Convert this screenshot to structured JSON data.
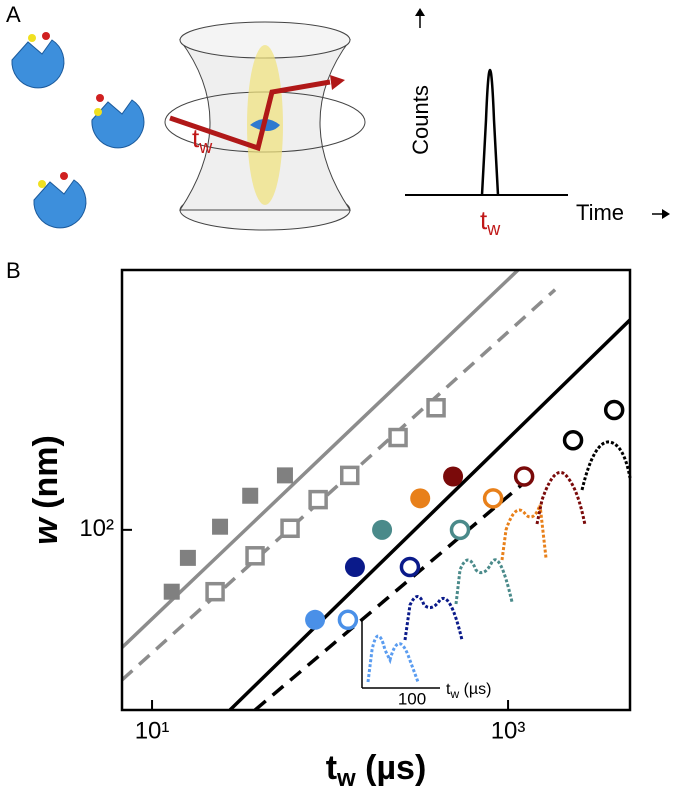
{
  "panel_a": {
    "label": "A",
    "counts": "Counts",
    "time": "Time",
    "trap_tw": {
      "main": "t",
      "sub": "w"
    },
    "plot_tw": {
      "main": "t",
      "sub": "w"
    }
  },
  "chart_data": {
    "type": "scatter",
    "panel_label": "B",
    "x_label": {
      "main": "t",
      "sub": "w",
      "rest": " (µs)"
    },
    "y_label": {
      "main": "w",
      "rest": " (nm)"
    },
    "log_x": true,
    "log_y": true,
    "xlim": [
      6.78,
      4842
    ],
    "ylim": [
      32.1,
      515
    ],
    "xticks": [
      {
        "value": 10,
        "label": "10¹"
      },
      {
        "value": 1000,
        "label": "10³"
      }
    ],
    "yticks": [
      {
        "value": 100,
        "label": "10²"
      }
    ],
    "lines": [
      {
        "color": "#8c8c8c",
        "dash": false,
        "x": [
          6.78,
          1138
        ],
        "y": [
          47.6,
          515
        ]
      },
      {
        "color": "#8c8c8c",
        "dash": true,
        "x": [
          6.78,
          1837
        ],
        "y": [
          38.8,
          455
        ]
      },
      {
        "color": "#000000",
        "dash": false,
        "x": [
          27.4,
          4842
        ],
        "y": [
          32.1,
          376
        ]
      },
      {
        "color": "#000000",
        "dash": true,
        "x": [
          37.9,
          1330
        ],
        "y": [
          32.1,
          139
        ]
      }
    ],
    "series": [
      {
        "marker": "square",
        "filled": true,
        "colors": [
          "#808080",
          "#808080",
          "#808080",
          "#808080",
          "#808080"
        ],
        "x": [
          12.9,
          15.9,
          24.1,
          35.6,
          55.8
        ],
        "y": [
          67.7,
          83.8,
          102,
          124,
          141
        ]
      },
      {
        "marker": "square",
        "filled": false,
        "colors": [
          "#8c8c8c",
          "#8c8c8c",
          "#8c8c8c",
          "#8c8c8c",
          "#8c8c8c",
          "#8c8c8c",
          "#8c8c8c"
        ],
        "x": [
          22.6,
          37.9,
          59.6,
          85.7,
          129,
          241,
          394
        ],
        "y": [
          67.7,
          84.9,
          101,
          121,
          141,
          179,
          216
        ]
      },
      {
        "marker": "circle",
        "filled": true,
        "colors": [
          "#4a90e8",
          "#0a1a8a",
          "#4a8a8a",
          "#e8801a",
          "#7a0a0a"
        ],
        "x": [
          82.4,
          138,
          196,
          321,
          491
        ],
        "y": [
          56.7,
          79.1,
          100,
          122,
          140
        ]
      },
      {
        "marker": "circle",
        "filled": false,
        "colors": [
          "#4a90e8",
          "#0a1a8a",
          "#4a8a8a",
          "#e8801a",
          "#7a0a0a",
          "#000000",
          "#000000"
        ],
        "x": [
          126,
          281,
          537,
          824,
          1231,
          2318,
          3946
        ],
        "y": [
          56.7,
          79.1,
          100,
          122,
          140,
          176,
          213
        ]
      }
    ],
    "inset": {
      "tick_label": "100",
      "x_label": {
        "main": "t",
        "sub": "w",
        "rest": " (µs)"
      }
    }
  }
}
